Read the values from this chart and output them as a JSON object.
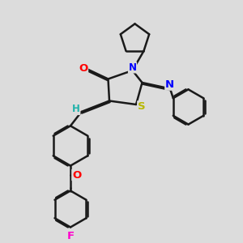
{
  "bg_color": "#dcdcdc",
  "bond_color": "#1a1a1a",
  "bond_width": 1.8,
  "atom_colors": {
    "O": "#ff0000",
    "N": "#0000ff",
    "S": "#b8b800",
    "F": "#ff00cc",
    "H": "#20b2aa",
    "C": "#1a1a1a"
  },
  "font_size": 8.5,
  "fig_size": [
    3.0,
    3.0
  ],
  "dpi": 100,
  "xlim": [
    0,
    10
  ],
  "ylim": [
    0,
    10
  ]
}
